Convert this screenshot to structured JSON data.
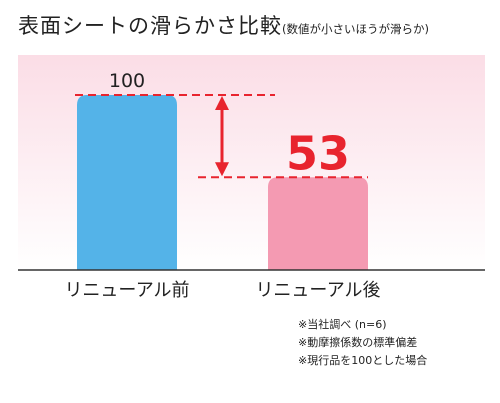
{
  "title": "表面シートの滑らかさ比較",
  "subtitle": "(数値が小さいほうが滑らか)",
  "chart_data": {
    "type": "bar",
    "categories": [
      "リニューアル前",
      "リニューアル後"
    ],
    "values": [
      100,
      53
    ],
    "data_labels": [
      "100",
      "53"
    ],
    "ylim": [
      0,
      100
    ],
    "grid": false,
    "annotation": "difference arrow between 100 and 53"
  },
  "colors": {
    "bar_before": "#54b3e8",
    "bar_after": "#f49ab2",
    "highlight": "#e8242e",
    "background_top": "#fbdde6",
    "background_bottom": "#ffffff"
  },
  "notes": [
    "※当社調べ (n=6)",
    "※動摩擦係数の標準偏差",
    "※現行品を100とした場合"
  ]
}
